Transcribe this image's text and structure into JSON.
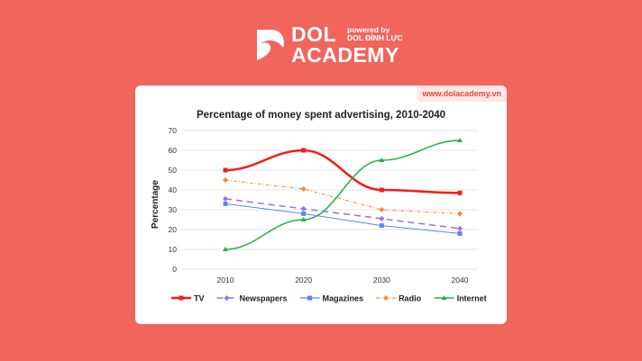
{
  "brand": {
    "name_line1": "DOL",
    "name_line2": "ACADEMY",
    "powered_by": "powered by",
    "powered_name": "DOL ĐÌNH LỰC",
    "website": "www.dolacademy.vn"
  },
  "colors": {
    "background": "#f0655c",
    "card": "#ffffff"
  },
  "chart_data": {
    "type": "line",
    "title": "Percentage of money spent advertising, 2010-2040",
    "xlabel": "",
    "ylabel": "Percentage",
    "categories": [
      "2010",
      "2020",
      "2030",
      "2040"
    ],
    "ylim": [
      0,
      70
    ],
    "yticks": [
      0,
      10,
      20,
      30,
      40,
      50,
      60,
      70
    ],
    "grid": true,
    "legend": "bottom",
    "series": [
      {
        "name": "TV",
        "values": [
          50,
          60,
          40,
          38.5
        ],
        "color": "#f21c1c",
        "dash": "",
        "marker": "square",
        "smooth": true,
        "width": 2.5
      },
      {
        "name": "Newspapers",
        "values": [
          35.5,
          30.5,
          25.5,
          20.5
        ],
        "color": "#9b6cf5",
        "dash": "7,5",
        "marker": "diamond",
        "smooth": false,
        "width": 1.5
      },
      {
        "name": "Magazines",
        "values": [
          33,
          28,
          22,
          18
        ],
        "color": "#5b84f5",
        "dash": "",
        "marker": "square",
        "smooth": false,
        "width": 1
      },
      {
        "name": "Radio",
        "values": [
          45,
          40.5,
          30,
          28
        ],
        "color": "#f7883a",
        "dash": "4,2,1,2",
        "marker": "diamond",
        "smooth": false,
        "width": 1
      },
      {
        "name": "Internet",
        "values": [
          10,
          25,
          55,
          65
        ],
        "color": "#22b04b",
        "dash": "",
        "marker": "triangle",
        "smooth": true,
        "width": 1.5
      }
    ]
  }
}
